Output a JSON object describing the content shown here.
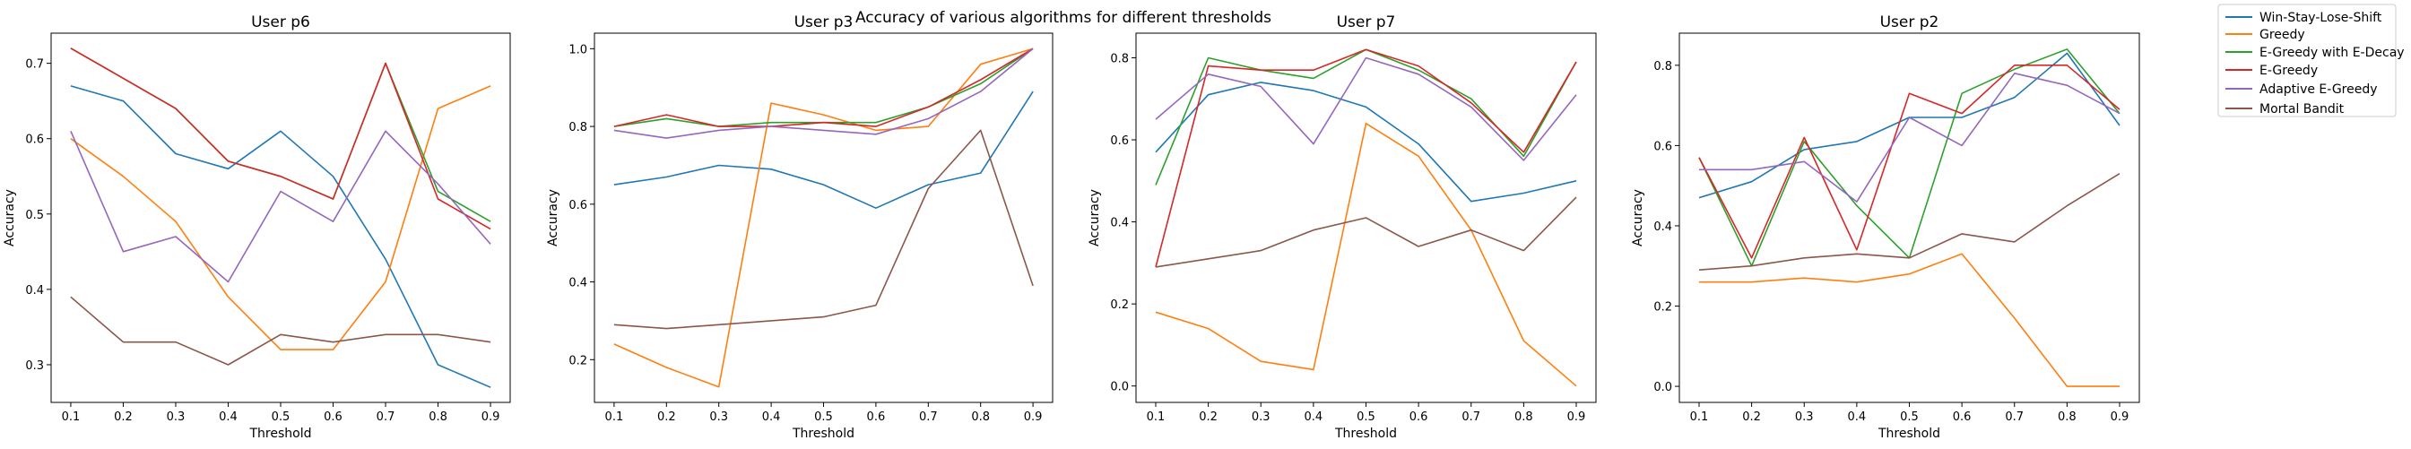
{
  "figure": {
    "title": "Accuracy of various algorithms for different thresholds"
  },
  "chart_data": [
    {
      "type": "line",
      "title": "User p6",
      "xlabel": "Threshold",
      "ylabel": "Accuracy",
      "x": [
        0.1,
        0.2,
        0.3,
        0.4,
        0.5,
        0.6,
        0.7,
        0.8,
        0.9
      ],
      "xticks": [
        "0.1",
        "0.2",
        "0.3",
        "0.4",
        "0.5",
        "0.6",
        "0.7",
        "0.8",
        "0.9"
      ],
      "ylim": [
        0.25,
        0.74
      ],
      "yticks": [
        0.3,
        0.4,
        0.5,
        0.6,
        0.7
      ],
      "ytick_labels": [
        "0.3",
        "0.4",
        "0.5",
        "0.6",
        "0.7"
      ],
      "series": [
        {
          "name": "Win-Stay-Lose-Shift",
          "values": [
            0.67,
            0.65,
            0.58,
            0.56,
            0.61,
            0.55,
            0.44,
            0.3,
            0.27
          ]
        },
        {
          "name": "Greedy",
          "values": [
            0.6,
            0.55,
            0.49,
            0.39,
            0.32,
            0.32,
            0.41,
            0.64,
            0.67
          ]
        },
        {
          "name": "E-Greedy with E-Decay",
          "values": [
            0.72,
            0.68,
            0.64,
            0.57,
            0.55,
            0.52,
            0.7,
            0.53,
            0.49
          ]
        },
        {
          "name": "E-Greedy",
          "values": [
            0.72,
            0.68,
            0.64,
            0.57,
            0.55,
            0.52,
            0.7,
            0.52,
            0.48
          ]
        },
        {
          "name": "Adaptive E-Greedy",
          "values": [
            0.61,
            0.45,
            0.47,
            0.41,
            0.53,
            0.49,
            0.61,
            0.54,
            0.46
          ]
        },
        {
          "name": "Mortal Bandit",
          "values": [
            0.39,
            0.33,
            0.33,
            0.3,
            0.34,
            0.33,
            0.34,
            0.34,
            0.33
          ]
        }
      ]
    },
    {
      "type": "line",
      "title": "User p3",
      "xlabel": "Threshold",
      "ylabel": "Accuracy",
      "x": [
        0.1,
        0.2,
        0.3,
        0.4,
        0.5,
        0.6,
        0.7,
        0.8,
        0.9
      ],
      "xticks": [
        "0.1",
        "0.2",
        "0.3",
        "0.4",
        "0.5",
        "0.6",
        "0.7",
        "0.8",
        "0.9"
      ],
      "ylim": [
        0.09,
        1.04
      ],
      "yticks": [
        0.2,
        0.4,
        0.6,
        0.8,
        1.0
      ],
      "ytick_labels": [
        "0.2",
        "0.4",
        "0.6",
        "0.8",
        "1.0"
      ],
      "series": [
        {
          "name": "Win-Stay-Lose-Shift",
          "values": [
            0.65,
            0.67,
            0.7,
            0.69,
            0.65,
            0.59,
            0.65,
            0.68,
            0.89
          ]
        },
        {
          "name": "Greedy",
          "values": [
            0.24,
            0.18,
            0.13,
            0.86,
            0.83,
            0.79,
            0.8,
            0.96,
            1.0
          ]
        },
        {
          "name": "E-Greedy with E-Decay",
          "values": [
            0.8,
            0.82,
            0.8,
            0.81,
            0.81,
            0.81,
            0.85,
            0.91,
            1.0
          ]
        },
        {
          "name": "E-Greedy",
          "values": [
            0.8,
            0.83,
            0.8,
            0.8,
            0.81,
            0.8,
            0.85,
            0.92,
            1.0
          ]
        },
        {
          "name": "Adaptive E-Greedy",
          "values": [
            0.79,
            0.77,
            0.79,
            0.8,
            0.79,
            0.78,
            0.82,
            0.89,
            1.0
          ]
        },
        {
          "name": "Mortal Bandit",
          "values": [
            0.29,
            0.28,
            0.29,
            0.3,
            0.31,
            0.34,
            0.64,
            0.79,
            0.39
          ]
        }
      ]
    },
    {
      "type": "line",
      "title": "User p7",
      "xlabel": "Threshold",
      "ylabel": "Accuracy",
      "x": [
        0.1,
        0.2,
        0.3,
        0.4,
        0.5,
        0.6,
        0.7,
        0.8,
        0.9
      ],
      "xticks": [
        "0.1",
        "0.2",
        "0.3",
        "0.4",
        "0.5",
        "0.6",
        "0.7",
        "0.8",
        "0.9"
      ],
      "ylim": [
        -0.04,
        0.86
      ],
      "yticks": [
        0.0,
        0.2,
        0.4,
        0.6,
        0.8
      ],
      "ytick_labels": [
        "0.0",
        "0.2",
        "0.4",
        "0.6",
        "0.8"
      ],
      "series": [
        {
          "name": "Win-Stay-Lose-Shift",
          "values": [
            0.57,
            0.71,
            0.74,
            0.72,
            0.68,
            0.59,
            0.45,
            0.47,
            0.5
          ]
        },
        {
          "name": "Greedy",
          "values": [
            0.18,
            0.14,
            0.06,
            0.04,
            0.64,
            0.56,
            0.38,
            0.11,
            0.0
          ]
        },
        {
          "name": "E-Greedy with E-Decay",
          "values": [
            0.49,
            0.8,
            0.77,
            0.75,
            0.82,
            0.77,
            0.7,
            0.56,
            0.79
          ]
        },
        {
          "name": "E-Greedy",
          "values": [
            0.29,
            0.78,
            0.77,
            0.77,
            0.82,
            0.78,
            0.69,
            0.57,
            0.79
          ]
        },
        {
          "name": "Adaptive E-Greedy",
          "values": [
            0.65,
            0.76,
            0.73,
            0.59,
            0.8,
            0.76,
            0.68,
            0.55,
            0.71
          ]
        },
        {
          "name": "Mortal Bandit",
          "values": [
            0.29,
            0.31,
            0.33,
            0.38,
            0.41,
            0.34,
            0.38,
            0.33,
            0.46
          ]
        }
      ]
    },
    {
      "type": "line",
      "title": "User p2",
      "xlabel": "Threshold",
      "ylabel": "Accuracy",
      "x": [
        0.1,
        0.2,
        0.3,
        0.4,
        0.5,
        0.6,
        0.7,
        0.8,
        0.9
      ],
      "xticks": [
        "0.1",
        "0.2",
        "0.3",
        "0.4",
        "0.5",
        "0.6",
        "0.7",
        "0.8",
        "0.9"
      ],
      "ylim": [
        -0.04,
        0.88
      ],
      "yticks": [
        0.0,
        0.2,
        0.4,
        0.6,
        0.8
      ],
      "ytick_labels": [
        "0.0",
        "0.2",
        "0.4",
        "0.6",
        "0.8"
      ],
      "series": [
        {
          "name": "Win-Stay-Lose-Shift",
          "values": [
            0.47,
            0.51,
            0.59,
            0.61,
            0.67,
            0.67,
            0.72,
            0.83,
            0.65
          ]
        },
        {
          "name": "Greedy",
          "values": [
            0.26,
            0.26,
            0.27,
            0.26,
            0.28,
            0.33,
            0.17,
            0.0,
            0.0
          ]
        },
        {
          "name": "E-Greedy with E-Decay",
          "values": [
            0.57,
            0.3,
            0.61,
            0.45,
            0.32,
            0.73,
            0.79,
            0.84,
            0.68
          ]
        },
        {
          "name": "E-Greedy",
          "values": [
            0.57,
            0.32,
            0.62,
            0.34,
            0.73,
            0.68,
            0.8,
            0.8,
            0.69
          ]
        },
        {
          "name": "Adaptive E-Greedy",
          "values": [
            0.54,
            0.54,
            0.56,
            0.46,
            0.67,
            0.6,
            0.78,
            0.75,
            0.68
          ]
        },
        {
          "name": "Mortal Bandit",
          "values": [
            0.29,
            0.3,
            0.32,
            0.33,
            0.32,
            0.38,
            0.36,
            0.45,
            0.53
          ]
        }
      ]
    }
  ],
  "legend": {
    "placement": "top-right",
    "entries": [
      {
        "label": "Win-Stay-Lose-Shift",
        "color": "#1f77b4"
      },
      {
        "label": "Greedy",
        "color": "#ff7f0e"
      },
      {
        "label": "E-Greedy with E-Decay",
        "color": "#2ca02c"
      },
      {
        "label": "E-Greedy",
        "color": "#d62728"
      },
      {
        "label": "Adaptive E-Greedy",
        "color": "#9467bd"
      },
      {
        "label": "Mortal Bandit",
        "color": "#8c564b"
      }
    ]
  }
}
